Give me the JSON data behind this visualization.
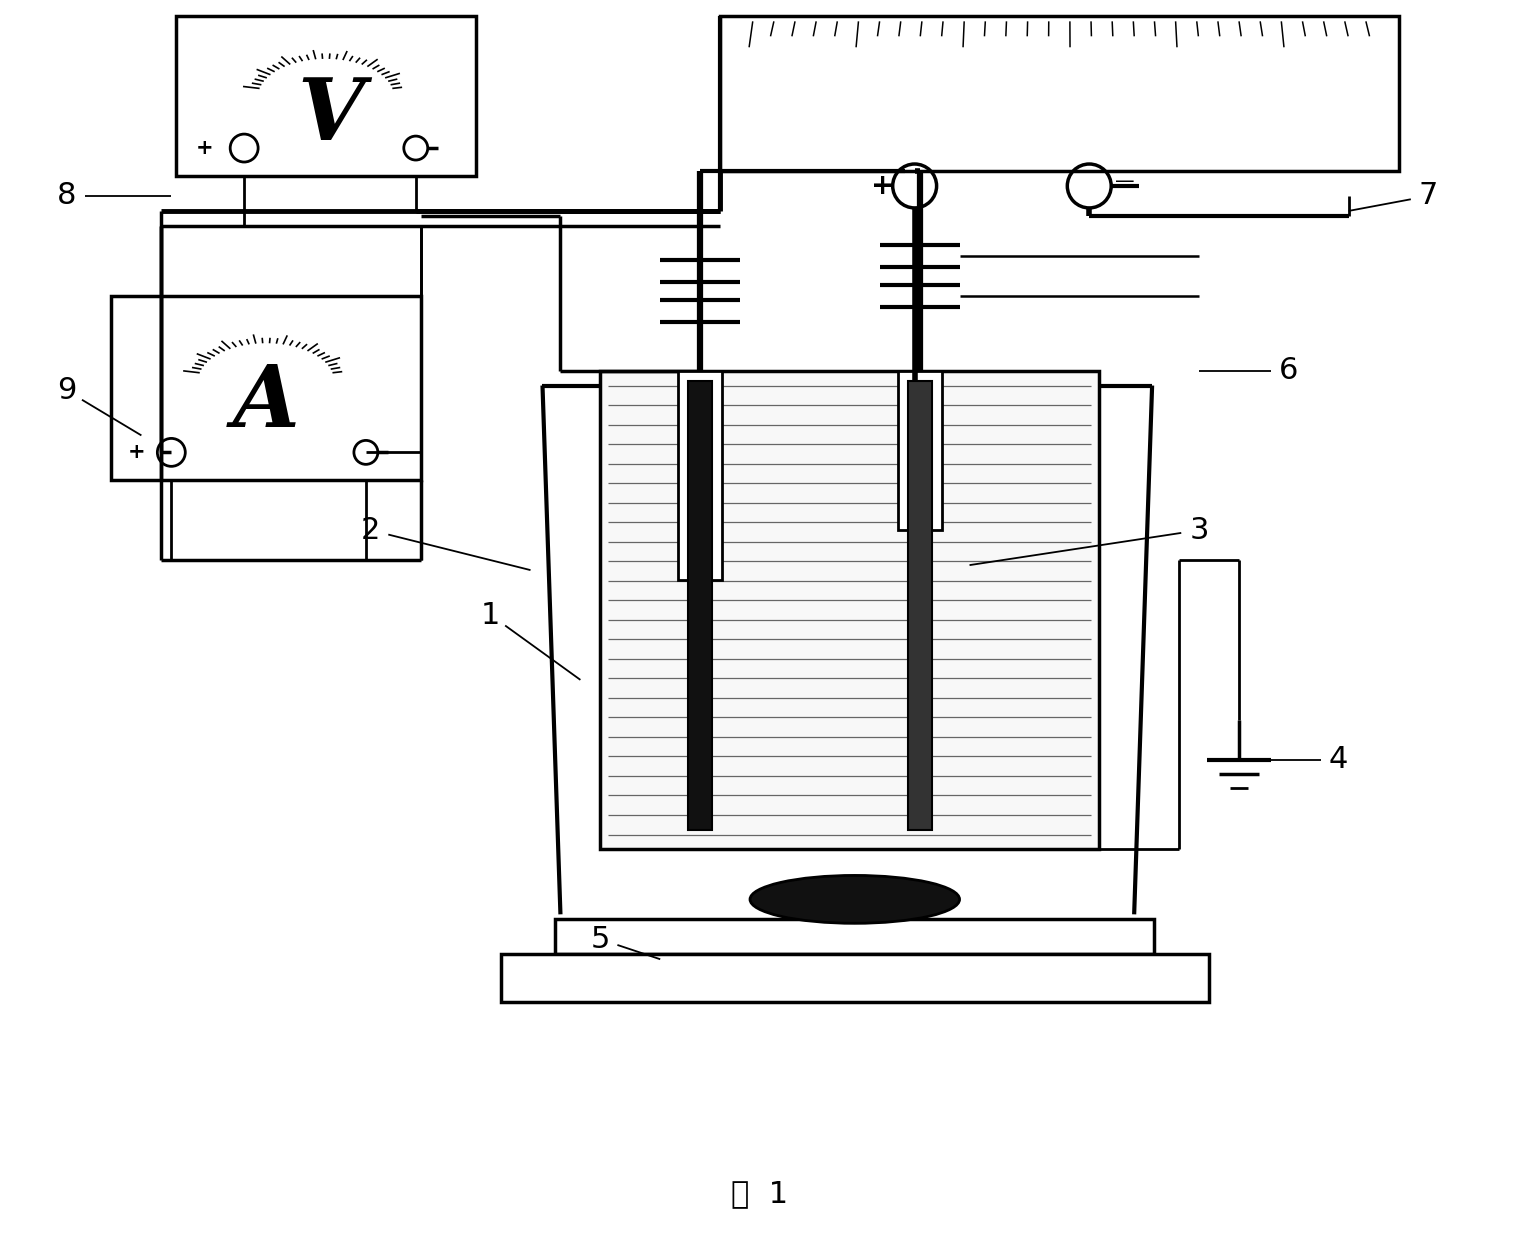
{
  "title": "图  1",
  "title_fontsize": 22,
  "bg": "#ffffff",
  "black": "#000000",
  "figsize": [
    15.19,
    12.37
  ],
  "dpi": 100,
  "labels": {
    "1": [
      490,
      615,
      580,
      680
    ],
    "2": [
      370,
      530,
      530,
      570
    ],
    "3": [
      1200,
      530,
      970,
      565
    ],
    "4": [
      1340,
      760,
      1270,
      760
    ],
    "5": [
      600,
      940,
      660,
      960
    ],
    "6": [
      1290,
      370,
      1200,
      370
    ],
    "7": [
      1430,
      195,
      1350,
      210
    ],
    "8": [
      65,
      195,
      170,
      195
    ],
    "9": [
      65,
      390,
      140,
      435
    ]
  }
}
